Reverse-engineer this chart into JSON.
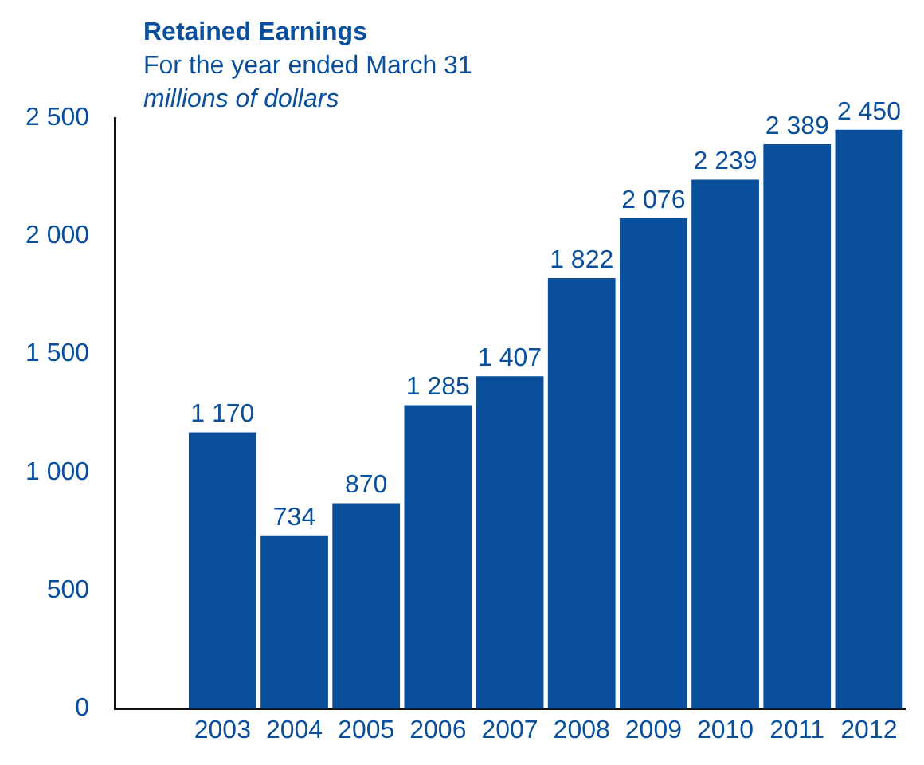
{
  "chart_data": {
    "type": "bar",
    "title": "Retained Earnings",
    "subtitle": "For the year ended March 31",
    "ylabel": "millions of dollars",
    "categories": [
      null,
      "2003",
      "2004",
      "2005",
      "2006",
      "2007",
      "2008",
      "2009",
      "2010",
      "2011",
      "2012"
    ],
    "values": [
      null,
      1170,
      734,
      870,
      1285,
      1407,
      1822,
      2076,
      2239,
      2389,
      2450
    ],
    "color": "#0a4f9c",
    "ylim": [
      0,
      2500
    ],
    "yticks": [
      0,
      500,
      1000,
      1500,
      2000,
      2500
    ],
    "grid": false,
    "data_labels": true
  }
}
